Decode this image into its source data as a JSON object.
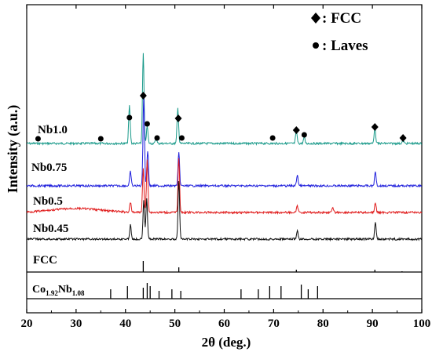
{
  "chart_data": {
    "type": "line",
    "xlabel": "2θ (deg.)",
    "ylabel": "Intensity (a.u.)",
    "xlim": [
      20,
      100
    ],
    "xticks": [
      20,
      30,
      40,
      50,
      60,
      70,
      80,
      90,
      100
    ],
    "legend": [
      {
        "symbol": "diamond",
        "label": ": FCC"
      },
      {
        "symbol": "circle",
        "label": ": Laves"
      }
    ],
    "series": [
      {
        "name": "Nb1.0",
        "color": "#1a9a8a",
        "peaks": [
          [
            40.8,
            48
          ],
          [
            43.6,
            115
          ],
          [
            44.4,
            22
          ],
          [
            46.2,
            6
          ],
          [
            50.6,
            45
          ],
          [
            74.6,
            16
          ],
          [
            76.2,
            8
          ],
          [
            90.5,
            20
          ],
          [
            96.2,
            4
          ]
        ]
      },
      {
        "name": "Nb0.75",
        "color": "#1f1fdc",
        "peaks": [
          [
            41.0,
            18
          ],
          [
            43.7,
            115
          ],
          [
            44.5,
            45
          ],
          [
            50.8,
            42
          ],
          [
            74.8,
            14
          ],
          [
            90.6,
            18
          ]
        ]
      },
      {
        "name": "Nb0.5",
        "color": "#e01c1c",
        "peaks": [
          [
            41.0,
            12
          ],
          [
            43.6,
            55
          ],
          [
            44.4,
            68
          ],
          [
            50.8,
            70
          ],
          [
            74.8,
            8
          ],
          [
            82.0,
            6
          ],
          [
            90.6,
            12
          ]
        ]
      },
      {
        "name": "Nb0.45",
        "color": "#111111",
        "peaks": [
          [
            41.0,
            18
          ],
          [
            43.7,
            50
          ],
          [
            44.3,
            52
          ],
          [
            50.8,
            75
          ],
          [
            74.8,
            10
          ],
          [
            90.6,
            22
          ]
        ]
      }
    ],
    "fcc_marks": [
      43.6,
      50.7,
      74.6,
      90.5,
      96.2
    ],
    "laves_marks": [
      22.3,
      35.0,
      40.8,
      44.4,
      46.4,
      51.4,
      69.8,
      76.2
    ],
    "reference_patterns": [
      {
        "label_base": "FCC",
        "lines": [
          43.6,
          50.8,
          74.6,
          90.5,
          96.0
        ],
        "heights": [
          14,
          6,
          3,
          3,
          1
        ]
      },
      {
        "label_base": "Co",
        "sub1": "1.92",
        "mid": "Nb",
        "sub2": "1.08",
        "lines": [
          37.0,
          40.4,
          43.6,
          44.4,
          45.0,
          46.8,
          49.4,
          51.2,
          63.4,
          66.9,
          69.2,
          71.5,
          75.6,
          77.0,
          78.9
        ],
        "heights": [
          12,
          16,
          14,
          20,
          16,
          10,
          12,
          10,
          12,
          12,
          16,
          16,
          18,
          12,
          16
        ]
      }
    ]
  }
}
